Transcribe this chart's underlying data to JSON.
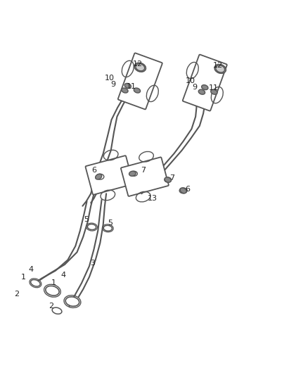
{
  "title": "",
  "background_color": "#ffffff",
  "line_color": "#555555",
  "label_color": "#222222",
  "fig_width": 4.38,
  "fig_height": 5.33,
  "labels": {
    "1": [
      0.085,
      0.155,
      0.19,
      0.215
    ],
    "2": [
      0.075,
      0.125,
      0.185,
      0.095
    ],
    "3": [
      0.33,
      0.24
    ],
    "4": [
      0.12,
      0.165,
      0.22,
      0.195
    ],
    "5": [
      0.305,
      0.37,
      0.355,
      0.355
    ],
    "6": [
      0.34,
      0.53,
      0.62,
      0.485
    ],
    "7": [
      0.51,
      0.54,
      0.585,
      0.515
    ],
    "9": [
      0.38,
      0.81,
      0.65,
      0.8
    ],
    "10": [
      0.37,
      0.835,
      0.635,
      0.83
    ],
    "11": [
      0.435,
      0.805,
      0.7,
      0.8
    ],
    "12": [
      0.455,
      0.87,
      0.715,
      0.87
    ],
    "13": [
      0.5,
      0.44
    ]
  }
}
